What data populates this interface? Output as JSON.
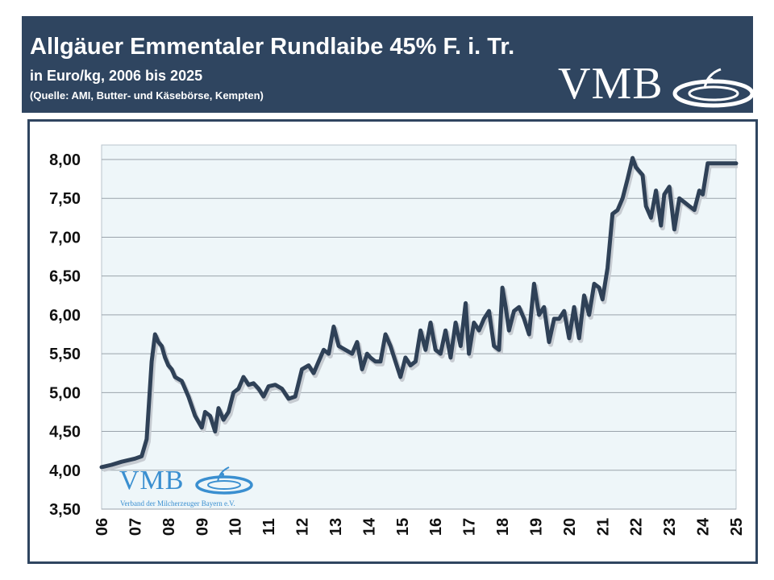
{
  "header": {
    "title": "Allgäuer Emmentaler Rundlaibe 45% F. i. Tr.",
    "subtitle": "in Euro/kg, 2006 bis 2025",
    "source": "(Quelle: AMI, Butter- und Käsebörse, Kempten)",
    "logo_text": "VMB"
  },
  "watermark": {
    "logo_text": "VMB",
    "org_name": "Verband der Milcherzeuger Bayern e.V."
  },
  "colors": {
    "header_bg": "#2f4560",
    "plot_bg": "#eef6f9",
    "line": "#2f4157",
    "logo_blue": "#3a8fd0"
  },
  "chart_data": {
    "type": "line",
    "title": "Allgäuer Emmentaler Rundlaibe 45% F. i. Tr.",
    "subtitle": "in Euro/kg, 2006 bis 2025",
    "xlabel": "",
    "ylabel": "",
    "xlim": [
      2006,
      2025
    ],
    "ylim": [
      3.5,
      8.0
    ],
    "y_ticks": [
      3.5,
      4.0,
      4.5,
      5.0,
      5.5,
      6.0,
      6.5,
      7.0,
      7.5,
      8.0
    ],
    "y_tick_labels": [
      "3,50",
      "4,00",
      "4,50",
      "5,00",
      "5,50",
      "6,00",
      "6,50",
      "7,00",
      "7,50",
      "8,00"
    ],
    "x_tick_labels": [
      "06",
      "07",
      "08",
      "09",
      "10",
      "11",
      "12",
      "13",
      "14",
      "15",
      "16",
      "17",
      "18",
      "19",
      "20",
      "21",
      "22",
      "23",
      "24",
      "25"
    ],
    "grid": true,
    "legend": "none",
    "series": [
      {
        "x": [
          2006.0,
          2006.3,
          2006.6,
          2007.0,
          2007.2,
          2007.35,
          2007.5,
          2007.6,
          2007.7,
          2007.8,
          2007.9,
          2008.0,
          2008.1,
          2008.2,
          2008.4,
          2008.6,
          2008.8,
          2009.0,
          2009.1,
          2009.25,
          2009.4,
          2009.5,
          2009.65,
          2009.8,
          2009.95,
          2010.1,
          2010.25,
          2010.4,
          2010.55,
          2010.7,
          2010.85,
          2011.0,
          2011.2,
          2011.4,
          2011.6,
          2011.8,
          2012.0,
          2012.2,
          2012.35,
          2012.5,
          2012.65,
          2012.8,
          2012.95,
          2013.1,
          2013.3,
          2013.5,
          2013.65,
          2013.8,
          2013.95,
          2014.05,
          2014.2,
          2014.35,
          2014.5,
          2014.65,
          2014.8,
          2014.95,
          2015.1,
          2015.25,
          2015.4,
          2015.55,
          2015.7,
          2015.85,
          2016.0,
          2016.15,
          2016.3,
          2016.45,
          2016.6,
          2016.75,
          2016.9,
          2017.0,
          2017.15,
          2017.3,
          2017.45,
          2017.6,
          2017.75,
          2017.9,
          2018.0,
          2018.1,
          2018.2,
          2018.35,
          2018.5,
          2018.65,
          2018.8,
          2018.95,
          2019.1,
          2019.25,
          2019.4,
          2019.55,
          2019.7,
          2019.85,
          2020.0,
          2020.15,
          2020.3,
          2020.45,
          2020.6,
          2020.75,
          2020.9,
          2021.0,
          2021.15,
          2021.3,
          2021.45,
          2021.6,
          2021.75,
          2021.9,
          2022.0,
          2022.1,
          2022.2,
          2022.3,
          2022.45,
          2022.6,
          2022.75,
          2022.85,
          2023.0,
          2023.15,
          2023.3,
          2023.45,
          2023.6,
          2023.75,
          2023.9,
          2024.0,
          2024.15,
          2024.3,
          2024.45,
          2024.6,
          2024.75,
          2024.9,
          2025.0
        ],
        "y": [
          4.04,
          4.07,
          4.11,
          4.15,
          4.18,
          4.4,
          5.4,
          5.75,
          5.65,
          5.6,
          5.45,
          5.35,
          5.3,
          5.2,
          5.15,
          4.95,
          4.7,
          4.55,
          4.75,
          4.7,
          4.5,
          4.8,
          4.65,
          4.75,
          5.0,
          5.05,
          5.2,
          5.1,
          5.12,
          5.05,
          4.95,
          5.08,
          5.1,
          5.05,
          4.92,
          4.95,
          5.3,
          5.35,
          5.25,
          5.4,
          5.55,
          5.5,
          5.85,
          5.6,
          5.55,
          5.5,
          5.65,
          5.3,
          5.5,
          5.45,
          5.4,
          5.4,
          5.75,
          5.6,
          5.4,
          5.2,
          5.45,
          5.35,
          5.4,
          5.8,
          5.55,
          5.9,
          5.55,
          5.5,
          5.8,
          5.45,
          5.9,
          5.6,
          6.15,
          5.5,
          5.9,
          5.8,
          5.95,
          6.05,
          5.6,
          5.55,
          6.35,
          6.1,
          5.8,
          6.05,
          6.1,
          5.95,
          5.75,
          6.4,
          6.0,
          6.1,
          5.65,
          5.95,
          5.95,
          6.05,
          5.7,
          6.1,
          5.7,
          6.25,
          6.0,
          6.4,
          6.35,
          6.2,
          6.6,
          7.3,
          7.35,
          7.5,
          7.75,
          8.02,
          7.9,
          7.85,
          7.8,
          7.4,
          7.25,
          7.6,
          7.15,
          7.55,
          7.65,
          7.1,
          7.5,
          7.45,
          7.4,
          7.35,
          7.6,
          7.55,
          7.95,
          7.95,
          7.95,
          7.95,
          7.95,
          7.95,
          7.95
        ]
      }
    ]
  }
}
